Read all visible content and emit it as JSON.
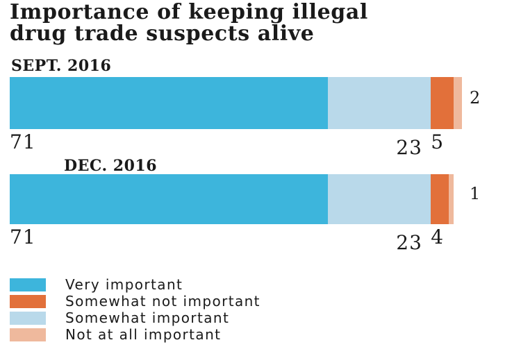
{
  "chart_data": {
    "type": "bar",
    "stacked": true,
    "orientation": "horizontal",
    "title_lines": [
      "Importance of keeping illegal",
      "drug trade suspects alive"
    ],
    "categories": [
      "SEPT. 2016",
      "DEC. 2016"
    ],
    "series": [
      {
        "name": "Very important",
        "color": "#3db5dc",
        "values": [
          71,
          71
        ]
      },
      {
        "name": "Somewhat important",
        "color": "#b9d9ea",
        "values": [
          23,
          23
        ]
      },
      {
        "name": "Somewhat not important",
        "color": "#e2703a",
        "values": [
          5,
          4
        ]
      },
      {
        "name": "Not at all important",
        "color": "#efb99d",
        "values": [
          2,
          1
        ]
      }
    ],
    "legend": {
      "placement": "bottom",
      "order": [
        "Very important",
        "Somewhat not important",
        "Somewhat important",
        "Not at all important"
      ]
    },
    "grid": false
  }
}
